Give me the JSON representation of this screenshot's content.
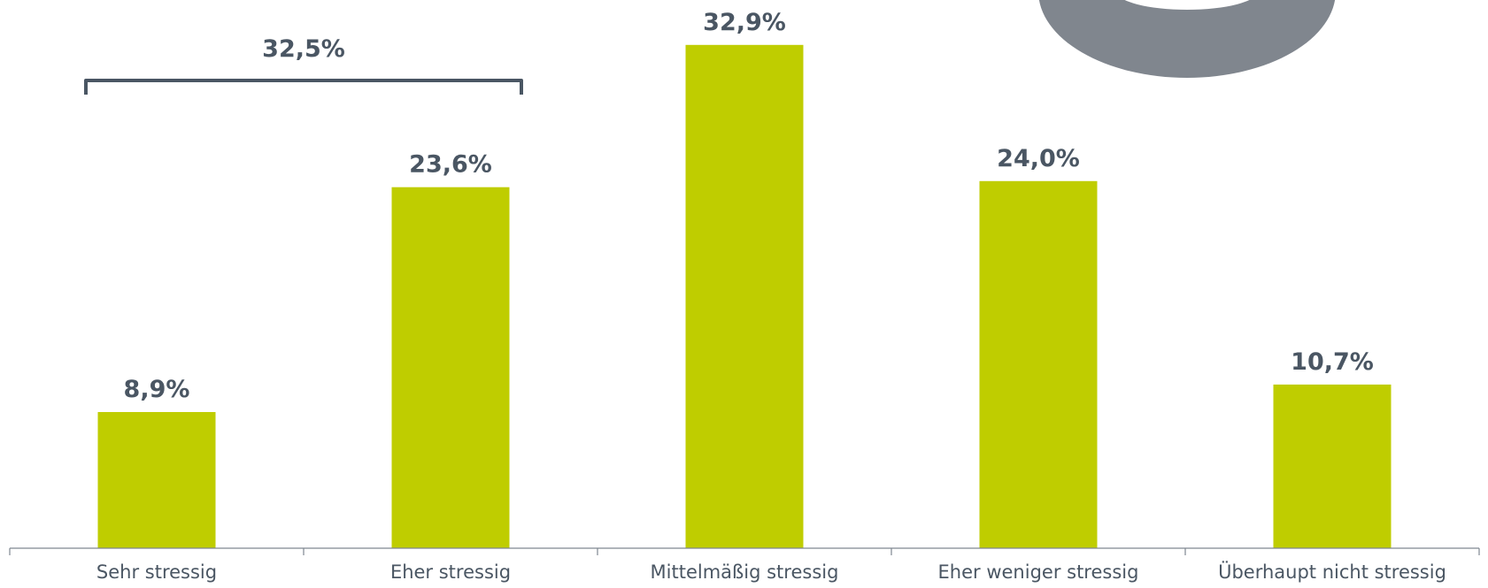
{
  "chart_data": {
    "type": "bar",
    "categories": [
      "Sehr stressig",
      "Eher stressig",
      "Mittelmäßig stressig",
      "Eher weniger stressig",
      "Überhaupt nicht stressig"
    ],
    "values": [
      8.9,
      23.6,
      32.9,
      24.0,
      10.7
    ],
    "value_labels": [
      "8,9%",
      "23,6%",
      "32,9%",
      "24,0%",
      "10,7%"
    ],
    "bracket": {
      "label": "32,5%",
      "spans_categories": [
        "Sehr stressig",
        "Eher stressig"
      ]
    },
    "title": "",
    "xlabel": "",
    "ylabel": "",
    "ylim": [
      0,
      35
    ],
    "grid": false,
    "legend": "none"
  },
  "colors": {
    "bar": "#bfcd00",
    "label": "#4a5663",
    "axis": "#7f8791",
    "category_text": "#4a5663",
    "donut_fragment": "#80868e"
  },
  "decorations": {
    "top_right": "donut-fragment"
  }
}
